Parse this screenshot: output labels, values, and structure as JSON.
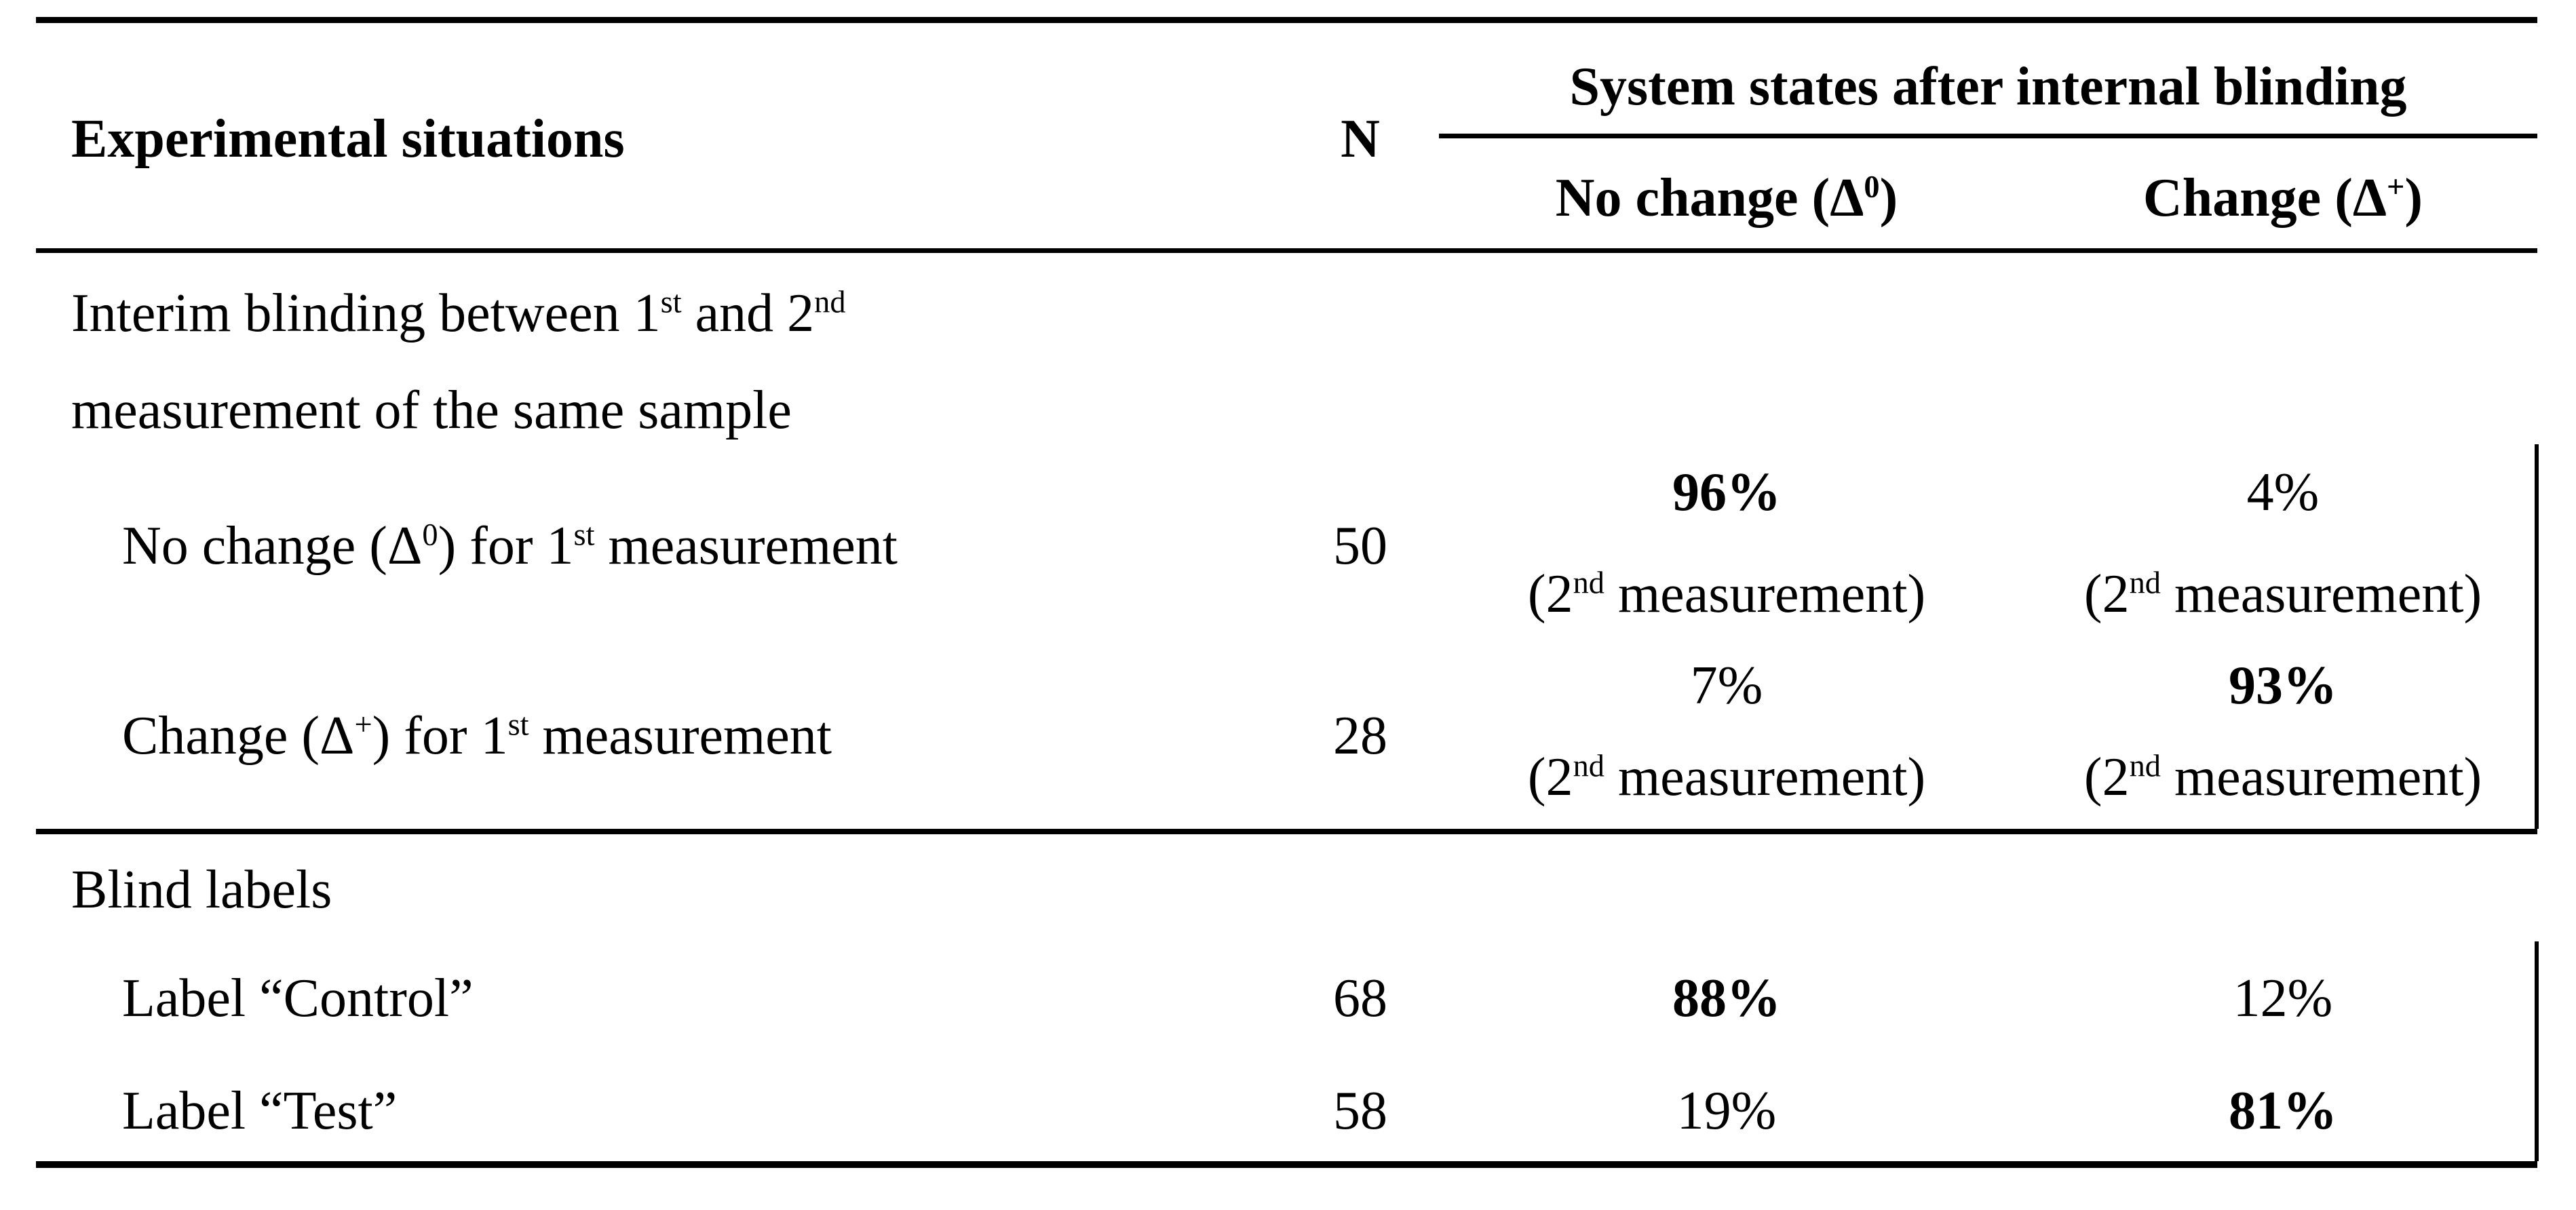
{
  "colors": {
    "background": "#ffffff",
    "text": "#000000",
    "rule": "#000000"
  },
  "header": {
    "experimental_situations": "Experimental situations",
    "n_label": "N",
    "spanner_label": "System states after internal blinding",
    "no_change_label": "No change (Δ<sup>0</sup>)",
    "change_label": "Change (Δ<sup>+</sup>)"
  },
  "sections": {
    "interim": {
      "heading_line1": "Interim blinding between 1<sup>st</sup> and 2<sup>nd</sup>",
      "heading_line2": "measurement of the same sample",
      "rows": [
        {
          "label": "No change (Δ<sup>0</sup>) for 1<sup>st</sup> measurement",
          "n": "50",
          "no_change_value": "96%",
          "no_change_note": "(2<sup>nd</sup> measurement)",
          "no_change_bold": true,
          "change_value": "4%",
          "change_note": "(2<sup>nd</sup> measurement)",
          "change_bold": false
        },
        {
          "label": "Change (Δ<sup>+</sup>) for 1<sup>st</sup> measurement",
          "n": "28",
          "no_change_value": "7%",
          "no_change_note": "(2<sup>nd</sup> measurement)",
          "no_change_bold": false,
          "change_value": "93%",
          "change_note": "(2<sup>nd</sup> measurement)",
          "change_bold": true
        }
      ]
    },
    "blind_labels": {
      "heading": "Blind labels",
      "rows": [
        {
          "label": "Label “Control”",
          "n": "68",
          "no_change_value": "88%",
          "no_change_bold": true,
          "change_value": "12%",
          "change_bold": false
        },
        {
          "label": "Label “Test”",
          "n": "58",
          "no_change_value": "19%",
          "no_change_bold": false,
          "change_value": "81%",
          "change_bold": true
        }
      ]
    }
  }
}
